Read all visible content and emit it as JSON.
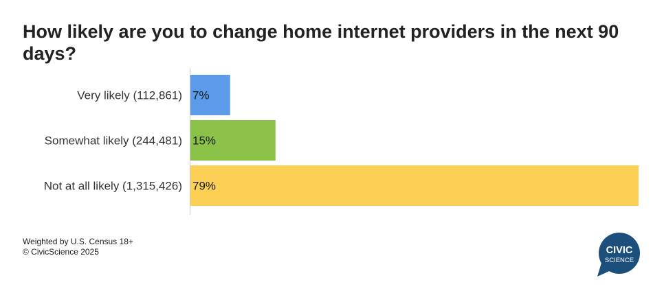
{
  "title": "How likely are you to change home internet providers in the next 90 days?",
  "footer": {
    "note": "Weighted by U.S. Census 18+",
    "copyright": "© CivicScience 2025"
  },
  "logo": {
    "line1": "CIVIC",
    "line2": "SCIENCE",
    "color": "#1d4f7c"
  },
  "chart_data": {
    "type": "bar",
    "orientation": "horizontal",
    "title": "How likely are you to change home internet providers in the next 90 days?",
    "categories": [
      "Very likely (112,861)",
      "Somewhat likely (244,481)",
      "Not at all likely (1,315,426)"
    ],
    "values": [
      7,
      15,
      79
    ],
    "value_labels": [
      "7%",
      "15%",
      "79%"
    ],
    "colors": [
      "#5b9bea",
      "#8bc34a",
      "#fccf55"
    ],
    "xlim": [
      0,
      79
    ],
    "grid": false,
    "legend": "none"
  }
}
